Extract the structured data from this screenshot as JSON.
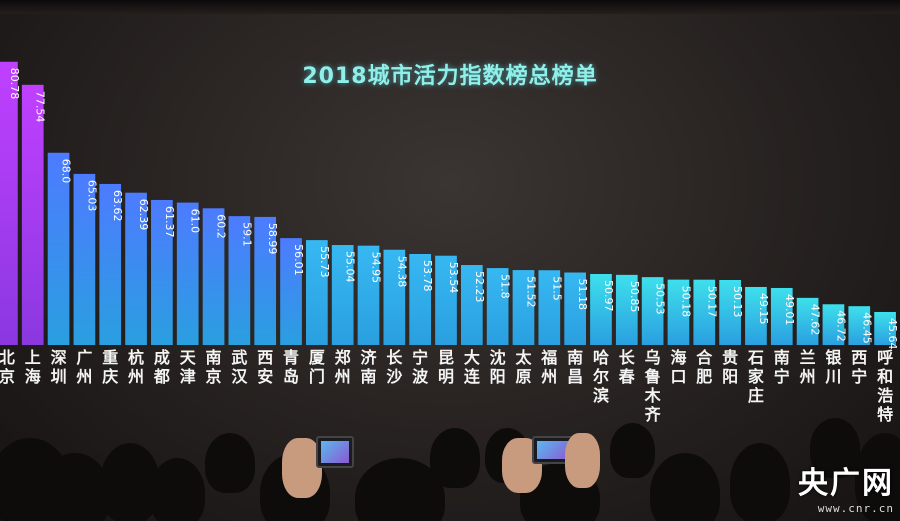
{
  "chart_data": {
    "type": "bar",
    "title": "2018城市活力指数榜总榜单",
    "categories": [
      "北京",
      "上海",
      "深圳",
      "广州",
      "重庆",
      "杭州",
      "成都",
      "天津",
      "南京",
      "武汉",
      "西安",
      "青岛",
      "厦门",
      "郑州",
      "济南",
      "长沙",
      "宁波",
      "昆明",
      "大连",
      "沈阳",
      "太原",
      "福州",
      "南昌",
      "哈尔滨",
      "长春",
      "乌鲁木齐",
      "海口",
      "合肥",
      "贵阳",
      "石家庄",
      "南宁",
      "兰州",
      "银川",
      "西宁",
      "呼和浩特"
    ],
    "values": [
      80.78,
      77.54,
      68.0,
      65.03,
      63.62,
      62.39,
      61.37,
      61.0,
      60.2,
      59.1,
      58.99,
      56.01,
      55.73,
      55.04,
      54.95,
      54.38,
      53.78,
      53.54,
      52.23,
      51.8,
      51.52,
      51.5,
      51.18,
      50.97,
      50.85,
      50.53,
      50.18,
      50.17,
      50.13,
      49.15,
      49.01,
      47.62,
      46.72,
      46.45,
      45.64
    ],
    "value_labels": [
      "80.78",
      "77.54",
      "68.0",
      "65.03",
      "63.62",
      "62.39",
      "61.37",
      "61.0",
      "60.2",
      "59.1",
      "58.99",
      "56.01",
      "55.73",
      "55.04",
      "54.95",
      "54.38",
      "53.78",
      "53.54",
      "52.23",
      "51.8",
      "51.52",
      "51.5",
      "51.18",
      "50.97",
      "50.85",
      "50.53",
      "50.18",
      "50.17",
      "50.13",
      "49.15",
      "49.01",
      "47.62",
      "46.72",
      "46.45",
      "45.64"
    ],
    "colors": {
      "high": "#c040ff",
      "mid": "#4d7bff",
      "low": "#3ee0ec",
      "title": "#8ff0ea"
    }
  },
  "watermark": {
    "name": "央广网",
    "url": "www.cnr.cn"
  }
}
